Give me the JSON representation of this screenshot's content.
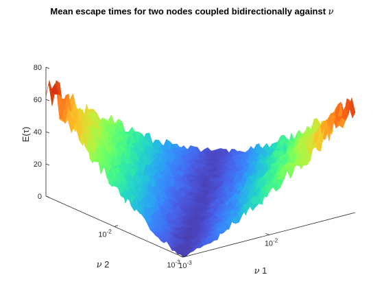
{
  "chart_data": {
    "type": "surface",
    "title": "Mean escape times for two nodes coupled bidirectionally against ",
    "title_symbol": "ν",
    "zlabel": "E(τ)",
    "xlabel_symbol": "ν",
    "xlabel_suffix": " 1",
    "ylabel_symbol": "ν",
    "ylabel_suffix": " 2",
    "zlim": [
      0,
      80
    ],
    "zticks": [
      "0",
      "20",
      "40",
      "60",
      "80"
    ],
    "xticks": [
      {
        "value": 0.001,
        "label": "10",
        "exp": "-3"
      },
      {
        "value": 0.01,
        "label": "10",
        "exp": "-2"
      }
    ],
    "yticks": [
      {
        "value": 0.001,
        "label": "10",
        "exp": "-3"
      },
      {
        "value": 0.01,
        "label": "10",
        "exp": "-2"
      }
    ],
    "x_range": [
      0.001,
      0.1
    ],
    "y_range": [
      0.001,
      0.1
    ],
    "x_scale": "log",
    "y_scale": "log",
    "colormap": "turbo",
    "valley": "E(τ) near 0–10 along the diagonal ν1 ≈ ν2, rising to about 55–75 where one ν is large and the other small",
    "surface_samples": [
      {
        "nu1": 0.001,
        "nu2": 0.001,
        "E": 3
      },
      {
        "nu1": 0.01,
        "nu2": 0.01,
        "E": 3
      },
      {
        "nu1": 0.1,
        "nu2": 0.1,
        "E": 6
      },
      {
        "nu1": 0.1,
        "nu2": 0.001,
        "E": 62
      },
      {
        "nu1": 0.001,
        "nu2": 0.1,
        "E": 62
      },
      {
        "nu1": 0.1,
        "nu2": 0.01,
        "E": 48
      },
      {
        "nu1": 0.01,
        "nu2": 0.1,
        "E": 48
      }
    ],
    "grid": false
  }
}
